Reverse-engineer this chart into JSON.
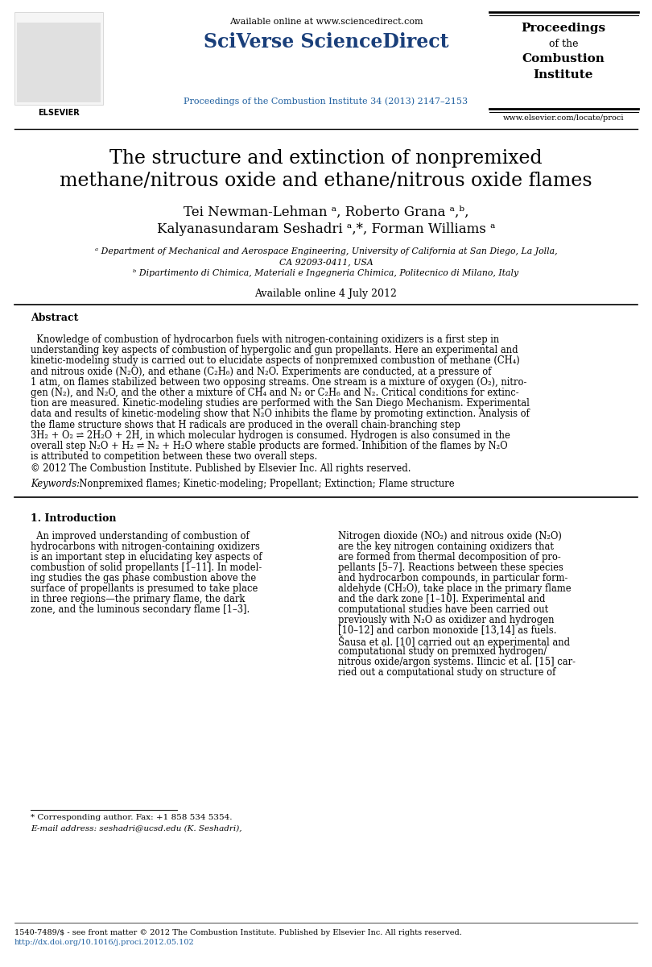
{
  "bg_color": "#ffffff",
  "header_available_online": "Available online at www.sciencedirect.com",
  "header_sciverse": "SciVerse ScienceDirect",
  "header_journal_link": "Proceedings of the Combustion Institute 34 (2013) 2147–2153",
  "header_website": "www.elsevier.com/locate/proci",
  "paper_title_line1": "The structure and extinction of nonpremixed",
  "paper_title_line2": "methane/nitrous oxide and ethane/nitrous oxide flames",
  "author_line1": "Tei Newman-Lehman ᵃ, Roberto Grana ᵃ,ᵇ,",
  "author_line2": "Kalyanasundaram Seshadri ᵃ,*, Forman Williams ᵃ",
  "affil_a": "ᵃ Department of Mechanical and Aerospace Engineering, University of California at San Diego, La Jolla,",
  "affil_a2": "CA 92093-0411, USA",
  "affil_b": "ᵇ Dipartimento di Chimica, Materiali e Ingegneria Chimica, Politecnico di Milano, Italy",
  "available_online": "Available online 4 July 2012",
  "abstract_title": "Abstract",
  "abstract_line1": "  Knowledge of combustion of hydrocarbon fuels with nitrogen-containing oxidizers is a first step in",
  "abstract_line2": "understanding key aspects of combustion of hypergolic and gun propellants. Here an experimental and",
  "abstract_line3": "kinetic-modeling study is carried out to elucidate aspects of nonpremixed combustion of methane (CH₄)",
  "abstract_line4": "and nitrous oxide (N₂O), and ethane (C₂H₆) and N₂O. Experiments are conducted, at a pressure of",
  "abstract_line5": "1 atm, on flames stabilized between two opposing streams. One stream is a mixture of oxygen (O₂), nitro-",
  "abstract_line6": "gen (N₂), and N₂O, and the other a mixture of CH₄ and N₂ or C₂H₆ and N₂. Critical conditions for extinc-",
  "abstract_line7": "tion are measured. Kinetic-modeling studies are performed with the San Diego Mechanism. Experimental",
  "abstract_line8": "data and results of kinetic-modeling show that N₂O inhibits the flame by promoting extinction. Analysis of",
  "abstract_line9": "the flame structure shows that H radicals are produced in the overall chain-branching step",
  "abstract_line10": "3H₂ + O₂ ⇌ 2H₂O + 2H, in which molecular hydrogen is consumed. Hydrogen is also consumed in the",
  "abstract_line11": "overall step N₂O + H₂ ⇌ N₂ + H₂O where stable products are formed. Inhibition of the flames by N₂O",
  "abstract_line12": "is attributed to competition between these two overall steps.",
  "copyright": "© 2012 The Combustion Institute. Published by Elsevier Inc. All rights reserved.",
  "keywords_italic": "Keywords:",
  "keywords_rest": "  Nonpremixed flames; Kinetic-modeling; Propellant; Extinction; Flame structure",
  "intro_title": "1. Introduction",
  "intro_col1_l1": "  An improved understanding of combustion of",
  "intro_col1_l2": "hydrocarbons with nitrogen-containing oxidizers",
  "intro_col1_l3": "is an important step in elucidating key aspects of",
  "intro_col1_l4": "combustion of solid propellants [1–11]. In model-",
  "intro_col1_l5": "ing studies the gas phase combustion above the",
  "intro_col1_l6": "surface of propellants is presumed to take place",
  "intro_col1_l7": "in three regions—the primary flame, the dark",
  "intro_col1_l8": "zone, and the luminous secondary flame [1–3].",
  "intro_col2_l1": "Nitrogen dioxide (NO₂) and nitrous oxide (N₂O)",
  "intro_col2_l2": "are the key nitrogen containing oxidizers that",
  "intro_col2_l3": "are formed from thermal decomposition of pro-",
  "intro_col2_l4": "pellants [5–7]. Reactions between these species",
  "intro_col2_l5": "and hydrocarbon compounds, in particular form-",
  "intro_col2_l6": "aldehyde (CH₂O), take place in the primary flame",
  "intro_col2_l7": "and the dark zone [1–10]. Experimental and",
  "intro_col2_l8": "computational studies have been carried out",
  "intro_col2_l9": "previously with N₂O as oxidizer and hydrogen",
  "intro_col2_l10": "[10–12] and carbon monoxide [13,14] as fuels.",
  "intro_col2_l11": "Šausa et al. [10] carried out an experimental and",
  "intro_col2_l12": "computational study on premixed hydrogen/",
  "intro_col2_l13": "nitrous oxide/argon systems. Ilincic et al. [15] car-",
  "intro_col2_l14": "ried out a computational study on structure of",
  "footnote_line1": "* Corresponding author. Fax: +1 858 534 5354.",
  "footnote_line2": "E-mail address: seshadri@ucsd.edu (K. Seshadri),",
  "footer_issn": "1540-7489/$ - see front matter © 2012 The Combustion Institute. Published by Elsevier Inc. All rights reserved.",
  "footer_doi": "http://dx.doi.org/10.1016/j.proci.2012.05.102",
  "sciverse_color": "#1a3f7a",
  "link_color": "#2060a0",
  "black": "#000000",
  "white": "#ffffff"
}
